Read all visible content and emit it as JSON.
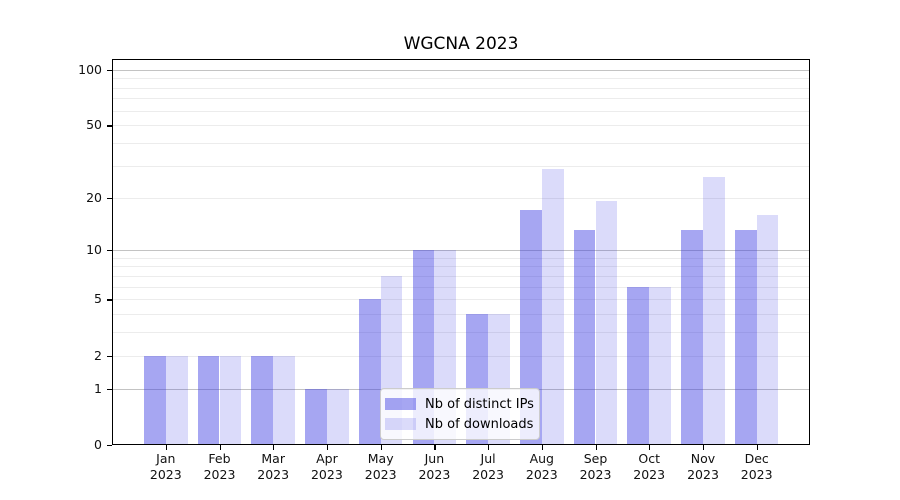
{
  "chart_data": {
    "type": "bar",
    "title": "WGCNA 2023",
    "categories": [
      "Jan 2023",
      "Feb 2023",
      "Mar 2023",
      "Apr 2023",
      "May 2023",
      "Jun 2023",
      "Jul 2023",
      "Aug 2023",
      "Sep 2023",
      "Oct 2023",
      "Nov 2023",
      "Dec 2023"
    ],
    "series": [
      {
        "name": "Nb of distinct IPs",
        "values": [
          2,
          2,
          2,
          1,
          5,
          10,
          4,
          17,
          13,
          6,
          13,
          13
        ],
        "color": "rgba(57,57,226,0.45)"
      },
      {
        "name": "Nb of downloads",
        "values": [
          2,
          2,
          2,
          1,
          7,
          10,
          4,
          29,
          19,
          6,
          26,
          16
        ],
        "color": "rgba(57,57,226,0.18)"
      }
    ],
    "xlabel": "",
    "ylabel": "",
    "yscale": "log1p",
    "ylim": [
      0,
      114
    ],
    "yticks": [
      0,
      1,
      2,
      5,
      10,
      20,
      50,
      100
    ],
    "major_gridlines": [
      1,
      10,
      100
    ],
    "minor_gridlines": [
      2,
      3,
      4,
      5,
      6,
      7,
      8,
      9,
      20,
      30,
      40,
      50,
      60,
      70,
      80,
      90
    ],
    "grid": true,
    "legend_position": "lower center"
  },
  "style": {
    "bar_dark": "rgba(57,57,226,0.45)",
    "bar_light": "rgba(57,57,226,0.18)",
    "major_grid_color": "#c3c3c3",
    "minor_grid_color": "#ececec",
    "axis_color": "#000000",
    "text_color": "#111111",
    "background": "#ffffff"
  }
}
